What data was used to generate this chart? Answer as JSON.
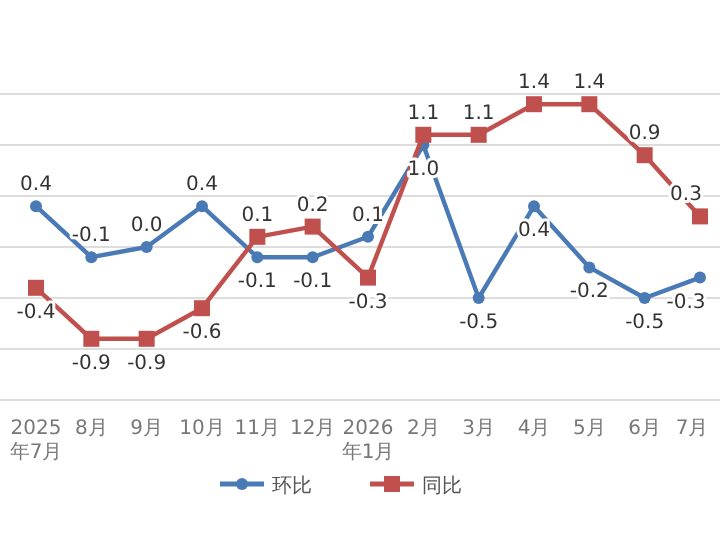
{
  "chart_data": {
    "type": "line",
    "categories": [
      "2025\n年7月",
      "8月",
      "9月",
      "10月",
      "11月",
      "12月",
      "2026\n年1月",
      "2月",
      "3月",
      "4月",
      "5月",
      "6月",
      "7月"
    ],
    "series": [
      {
        "name": "环比",
        "color": "#4a7ab5",
        "marker": "circle",
        "values": [
          0.4,
          -0.1,
          0.0,
          0.4,
          -0.1,
          -0.1,
          0.1,
          1.0,
          -0.5,
          0.4,
          -0.2,
          -0.5,
          -0.3
        ],
        "value_labels": [
          "0.4",
          "-0.1",
          "0.0",
          "0.4",
          "-0.1",
          "-0.1",
          "0.1",
          "1.0",
          "-0.5",
          "0.4",
          "-0.2",
          "-0.5",
          "-0.3"
        ]
      },
      {
        "name": "同比",
        "color": "#c0504d",
        "marker": "square",
        "values": [
          -0.4,
          -0.9,
          -0.9,
          -0.6,
          0.1,
          0.2,
          -0.3,
          1.1,
          1.1,
          1.4,
          1.4,
          0.9,
          0.3
        ],
        "value_labels": [
          "-0.4",
          "-0.9",
          "-0.9",
          "-0.6",
          "0.1",
          "0.2",
          "-0.3",
          "1.1",
          "1.1",
          "1.4",
          "1.4",
          "0.9",
          "0.3"
        ]
      }
    ],
    "ylim": [
      -1.5,
      1.5
    ],
    "yticks": [
      {
        "value": -1.5,
        "label": null
      },
      {
        "value": -1,
        "label": null
      },
      {
        "value": -0.5,
        "label": null
      },
      {
        "value": 0,
        "label": null
      },
      {
        "value": 0.5,
        "label": null
      },
      {
        "value": 1,
        "label": null
      },
      {
        "value": 1.5,
        "label": null
      }
    ],
    "tick_labels": "x",
    "grid": "y",
    "legend": "bottom",
    "line_style": "solid"
  }
}
